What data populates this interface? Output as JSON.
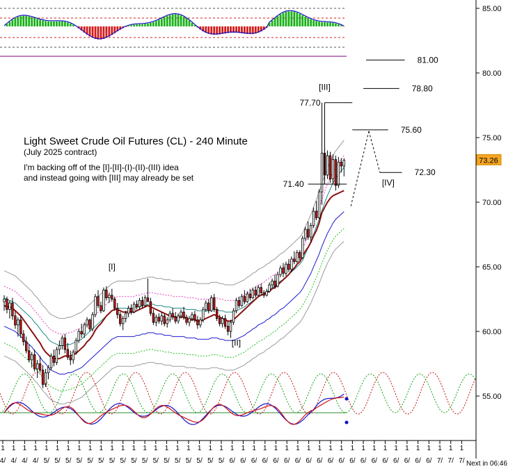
{
  "chart_data": {
    "type": "candlestick",
    "title": "Light Sweet Crude Oil Futures (CL) - 240 Minute",
    "subtitle": "(July 2025 contract)",
    "note_line1": "I'm backing off of the [I]-[II]-(I)-(II)-(III) idea",
    "note_line2": "and instead going with [III] may already be set",
    "last_price": "73.26",
    "footer": "Next in 06:46",
    "ylim": [
      51.5,
      86.2
    ],
    "y_ticks": [
      {
        "value": 85,
        "label": "85.00"
      },
      {
        "value": 80,
        "label": "80.00"
      },
      {
        "value": 75,
        "label": "75.00"
      },
      {
        "value": 70,
        "label": "70.00"
      },
      {
        "value": 65,
        "label": "65.00"
      },
      {
        "value": 60,
        "label": "60.00"
      },
      {
        "value": 55,
        "label": "55.00"
      }
    ],
    "wave_labels": [
      {
        "text": "[I]",
        "i": 39,
        "price": 65.0
      },
      {
        "text": "[II]",
        "i": 84,
        "price": 59.1
      },
      {
        "text": "[III]",
        "i": 116,
        "price": 78.9
      },
      {
        "text": "[IV]",
        "i": 139,
        "price": 71.5
      }
    ],
    "price_levels": [
      {
        "value": 81.0,
        "label": "81.00",
        "i_start": 131,
        "i_end": 145
      },
      {
        "value": 78.8,
        "label": "78.80",
        "i_start": 130,
        "i_end": 143
      },
      {
        "value": 77.7,
        "label": "77.70",
        "i_start": 116,
        "i_end": 126
      },
      {
        "value": 75.6,
        "label": "75.60",
        "i_start": 126,
        "i_end": 139
      },
      {
        "value": 72.3,
        "label": "72.30",
        "i_start": 136,
        "i_end": 144
      },
      {
        "value": 71.4,
        "label": "71.40",
        "i_start": 110,
        "i_end": 124
      }
    ],
    "date_labels": [
      "4",
      "4",
      "4",
      "4",
      "5",
      "5",
      "5",
      "5",
      "5",
      "5",
      "5",
      "5",
      "5",
      "5",
      "5",
      "5",
      "5",
      "5",
      "5",
      "5",
      "5",
      "6",
      "6",
      "6",
      "6",
      "6",
      "6",
      "6",
      "6",
      "6",
      "6",
      "6",
      "6",
      "6",
      "6",
      "6",
      "6",
      "6",
      "6",
      "6",
      "7",
      "7",
      "7"
    ],
    "ohlc": [
      [
        62.3,
        62.8,
        61.6,
        62.5
      ],
      [
        62.5,
        62.7,
        61.4,
        61.7
      ],
      [
        61.7,
        62.4,
        61.0,
        62.2
      ],
      [
        62.2,
        62.6,
        60.9,
        61.2
      ],
      [
        61.2,
        61.6,
        60.2,
        60.5
      ],
      [
        60.5,
        61.1,
        59.6,
        60.9
      ],
      [
        60.9,
        61.2,
        59.5,
        59.8
      ],
      [
        59.8,
        60.1,
        58.9,
        59.2
      ],
      [
        59.2,
        59.6,
        58.3,
        58.5
      ],
      [
        58.5,
        59.0,
        57.6,
        57.8
      ],
      [
        57.8,
        58.4,
        57.2,
        58.2
      ],
      [
        58.2,
        58.6,
        56.9,
        57.1
      ],
      [
        57.1,
        57.8,
        56.4,
        57.5
      ],
      [
        57.5,
        58.1,
        56.8,
        57.0
      ],
      [
        57.0,
        57.4,
        55.6,
        55.9
      ],
      [
        55.9,
        57.1,
        55.7,
        56.8
      ],
      [
        56.8,
        57.4,
        56.3,
        57.2
      ],
      [
        57.2,
        58.3,
        57.0,
        58.1
      ],
      [
        58.1,
        58.6,
        57.3,
        57.6
      ],
      [
        57.6,
        58.8,
        57.4,
        58.6
      ],
      [
        58.6,
        59.3,
        58.2,
        58.9
      ],
      [
        58.9,
        59.7,
        58.6,
        59.5
      ],
      [
        59.5,
        59.8,
        58.3,
        58.6
      ],
      [
        58.6,
        59.1,
        57.8,
        58.0
      ],
      [
        58.0,
        58.5,
        57.4,
        57.8
      ],
      [
        57.8,
        58.6,
        57.5,
        58.4
      ],
      [
        58.4,
        59.5,
        58.2,
        59.3
      ],
      [
        59.3,
        60.2,
        59.1,
        60.0
      ],
      [
        60.0,
        60.6,
        59.5,
        59.8
      ],
      [
        59.8,
        60.7,
        59.5,
        60.5
      ],
      [
        60.5,
        61.1,
        60.3,
        60.9
      ],
      [
        60.9,
        61.0,
        60.0,
        60.2
      ],
      [
        60.2,
        61.5,
        60.0,
        61.3
      ],
      [
        61.3,
        62.9,
        61.1,
        62.7
      ],
      [
        62.7,
        63.2,
        61.8,
        62.0
      ],
      [
        62.0,
        62.3,
        61.4,
        61.6
      ],
      [
        61.6,
        63.4,
        61.5,
        63.2
      ],
      [
        63.2,
        63.5,
        62.4,
        62.6
      ],
      [
        62.6,
        63.0,
        62.2,
        62.8
      ],
      [
        62.8,
        63.3,
        62.3,
        62.5
      ],
      [
        62.5,
        62.7,
        61.6,
        61.8
      ],
      [
        61.8,
        62.2,
        61.0,
        61.3
      ],
      [
        61.3,
        61.5,
        60.4,
        60.6
      ],
      [
        60.6,
        61.2,
        60.1,
        61.0
      ],
      [
        61.0,
        61.6,
        60.7,
        61.4
      ],
      [
        61.4,
        62.0,
        61.1,
        61.8
      ],
      [
        61.8,
        62.1,
        61.3,
        61.5
      ],
      [
        61.5,
        62.3,
        61.4,
        62.1
      ],
      [
        62.1,
        62.4,
        61.7,
        61.9
      ],
      [
        61.9,
        62.6,
        61.7,
        62.4
      ],
      [
        62.4,
        62.7,
        61.8,
        62.0
      ],
      [
        62.0,
        62.8,
        61.9,
        62.6
      ],
      [
        62.6,
        64.1,
        62.4,
        62.3
      ],
      [
        62.3,
        62.6,
        61.2,
        61.4
      ],
      [
        61.4,
        61.7,
        60.5,
        60.7
      ],
      [
        60.7,
        61.3,
        60.4,
        61.1
      ],
      [
        61.1,
        61.4,
        60.6,
        60.8
      ],
      [
        60.8,
        61.5,
        60.5,
        61.2
      ],
      [
        61.2,
        61.4,
        60.4,
        60.6
      ],
      [
        60.6,
        61.1,
        60.3,
        60.9
      ],
      [
        60.9,
        61.6,
        60.7,
        61.4
      ],
      [
        61.4,
        61.8,
        60.9,
        61.1
      ],
      [
        61.1,
        61.5,
        60.6,
        60.8
      ],
      [
        60.8,
        61.4,
        60.6,
        61.2
      ],
      [
        61.2,
        61.7,
        61.0,
        61.5
      ],
      [
        61.5,
        61.9,
        60.9,
        61.1
      ],
      [
        61.1,
        61.3,
        60.5,
        60.7
      ],
      [
        60.7,
        61.2,
        60.4,
        61.0
      ],
      [
        61.0,
        61.5,
        60.8,
        61.3
      ],
      [
        61.3,
        61.6,
        60.7,
        60.9
      ],
      [
        60.9,
        61.2,
        60.2,
        60.5
      ],
      [
        60.5,
        61.1,
        60.3,
        60.9
      ],
      [
        60.9,
        61.9,
        60.7,
        61.7
      ],
      [
        61.7,
        62.4,
        61.5,
        62.2
      ],
      [
        62.2,
        62.5,
        61.4,
        61.6
      ],
      [
        61.6,
        62.8,
        61.5,
        62.6
      ],
      [
        62.6,
        62.9,
        61.5,
        61.7
      ],
      [
        61.7,
        61.9,
        60.8,
        61.0
      ],
      [
        61.0,
        61.3,
        60.4,
        60.6
      ],
      [
        60.6,
        61.2,
        60.3,
        61.0
      ],
      [
        61.0,
        61.3,
        60.2,
        60.4
      ],
      [
        60.4,
        60.8,
        59.7,
        60.0
      ],
      [
        60.0,
        60.9,
        59.5,
        60.7
      ],
      [
        60.7,
        61.8,
        60.5,
        61.6
      ],
      [
        61.6,
        62.6,
        61.4,
        62.4
      ],
      [
        62.4,
        62.7,
        61.8,
        62.0
      ],
      [
        62.0,
        62.9,
        61.9,
        62.7
      ],
      [
        62.7,
        63.2,
        62.1,
        62.3
      ],
      [
        62.3,
        63.1,
        62.2,
        62.9
      ],
      [
        62.9,
        63.3,
        62.4,
        62.6
      ],
      [
        62.6,
        63.4,
        62.5,
        63.2
      ],
      [
        63.2,
        63.5,
        62.6,
        62.8
      ],
      [
        62.8,
        63.6,
        62.7,
        63.4
      ],
      [
        63.4,
        63.7,
        62.8,
        63.0
      ],
      [
        63.0,
        63.2,
        62.6,
        62.8
      ],
      [
        62.8,
        63.3,
        62.7,
        63.1
      ],
      [
        63.1,
        63.8,
        63.0,
        63.6
      ],
      [
        63.6,
        64.1,
        63.4,
        63.9
      ],
      [
        63.9,
        64.4,
        63.3,
        63.5
      ],
      [
        63.5,
        64.6,
        63.4,
        64.4
      ],
      [
        64.4,
        65.1,
        64.2,
        64.9
      ],
      [
        64.9,
        65.3,
        64.2,
        64.5
      ],
      [
        64.5,
        65.4,
        64.3,
        65.2
      ],
      [
        65.2,
        65.6,
        64.6,
        64.8
      ],
      [
        64.8,
        65.8,
        64.6,
        65.6
      ],
      [
        65.6,
        66.2,
        65.2,
        65.4
      ],
      [
        65.4,
        66.3,
        65.3,
        66.1
      ],
      [
        66.1,
        66.3,
        65.5,
        65.7
      ],
      [
        65.7,
        67.4,
        65.6,
        67.2
      ],
      [
        67.2,
        68.1,
        67.0,
        67.9
      ],
      [
        67.9,
        68.5,
        67.1,
        67.3
      ],
      [
        67.3,
        68.4,
        66.9,
        68.2
      ],
      [
        68.2,
        69.6,
        68.0,
        69.3
      ],
      [
        69.3,
        70.1,
        68.6,
        68.8
      ],
      [
        68.8,
        71.0,
        68.7,
        70.8
      ],
      [
        70.8,
        77.7,
        69.8,
        73.8
      ],
      [
        73.8,
        74.3,
        71.6,
        72.1
      ],
      [
        72.1,
        74.0,
        71.8,
        73.6
      ],
      [
        73.6,
        73.9,
        71.5,
        71.8
      ],
      [
        71.8,
        73.7,
        71.4,
        73.3
      ],
      [
        73.3,
        73.6,
        70.9,
        71.3
      ],
      [
        71.3,
        73.5,
        71.1,
        73.1
      ],
      [
        73.1,
        73.4,
        72.3,
        72.8
      ],
      [
        72.8,
        73.4,
        72.0,
        73.26
      ]
    ],
    "ma_short": [
      62.0,
      61.9,
      61.9,
      61.8,
      61.6,
      61.4,
      61.2,
      60.9,
      60.6,
      60.3,
      60.0,
      59.7,
      59.4,
      59.1,
      58.7,
      58.4,
      58.2,
      58.0,
      57.9,
      57.9,
      57.9,
      58.0,
      58.1,
      58.1,
      58.1,
      58.2,
      58.3,
      58.5,
      58.7,
      58.9,
      59.2,
      59.4,
      59.7,
      60.1,
      60.4,
      60.6,
      60.9,
      61.2,
      61.4,
      61.6,
      61.7,
      61.7,
      61.6,
      61.5,
      61.5,
      61.5,
      61.5,
      61.5,
      61.6,
      61.7,
      61.8,
      61.9,
      62.0,
      61.9,
      61.8,
      61.7,
      61.6,
      61.5,
      61.4,
      61.3,
      61.2,
      61.2,
      61.1,
      61.1,
      61.1,
      61.1,
      61.0,
      60.9,
      60.9,
      60.9,
      60.8,
      60.8,
      60.9,
      61.0,
      61.1,
      61.2,
      61.3,
      61.2,
      61.1,
      61.0,
      60.9,
      60.8,
      60.8,
      60.9,
      61.1,
      61.3,
      61.5,
      61.7,
      61.9,
      62.1,
      62.3,
      62.5,
      62.7,
      62.8,
      62.9,
      63.0,
      63.1,
      63.3,
      63.4,
      63.6,
      63.8,
      64.0,
      64.2,
      64.4,
      64.7,
      64.9,
      65.2,
      65.4,
      65.8,
      66.2,
      66.5,
      66.9,
      67.4,
      67.8,
      68.4,
      69.2,
      69.6,
      70.0,
      70.3,
      70.5,
      70.6,
      70.7,
      70.8,
      70.9
    ],
    "ma_long": [
      61.4,
      61.3,
      61.2,
      61.1,
      61.0,
      60.8,
      60.6,
      60.4,
      60.2,
      60.0,
      59.8,
      59.5,
      59.3,
      59.0,
      58.7,
      58.5,
      58.2,
      58.0,
      57.9,
      57.8,
      57.7,
      57.7,
      57.7,
      57.8,
      57.8,
      57.9,
      58.0,
      58.1,
      58.2,
      58.4,
      58.6,
      58.8,
      59.0,
      59.2,
      59.4,
      59.6,
      59.8,
      60.0,
      60.2,
      60.4,
      60.5,
      60.6,
      60.6,
      60.6,
      60.6,
      60.6,
      60.6,
      60.6,
      60.7,
      60.7,
      60.8,
      60.8,
      60.9,
      60.9,
      60.9,
      60.8,
      60.8,
      60.8,
      60.7,
      60.7,
      60.7,
      60.6,
      60.6,
      60.6,
      60.6,
      60.6,
      60.5,
      60.5,
      60.5,
      60.5,
      60.4,
      60.4,
      60.4,
      60.4,
      60.4,
      60.5,
      60.5,
      60.5,
      60.4,
      60.4,
      60.3,
      60.3,
      60.3,
      60.3,
      60.4,
      60.5,
      60.6,
      60.7,
      60.9,
      61.0,
      61.2,
      61.3,
      61.5,
      61.6,
      61.7,
      61.9,
      62.0,
      62.2,
      62.3,
      62.5,
      62.7,
      62.8,
      63.0,
      63.2,
      63.4,
      63.6,
      63.8,
      64.0,
      64.3,
      64.6,
      64.9,
      65.2,
      65.6,
      66.0,
      66.4,
      66.9,
      67.3,
      67.7,
      68.0,
      68.3,
      68.5,
      68.6,
      68.7,
      68.8
    ]
  },
  "ui": {
    "top_pane_id": "oscillator-top",
    "bottom_pane_id": "oscillator-bottom"
  }
}
